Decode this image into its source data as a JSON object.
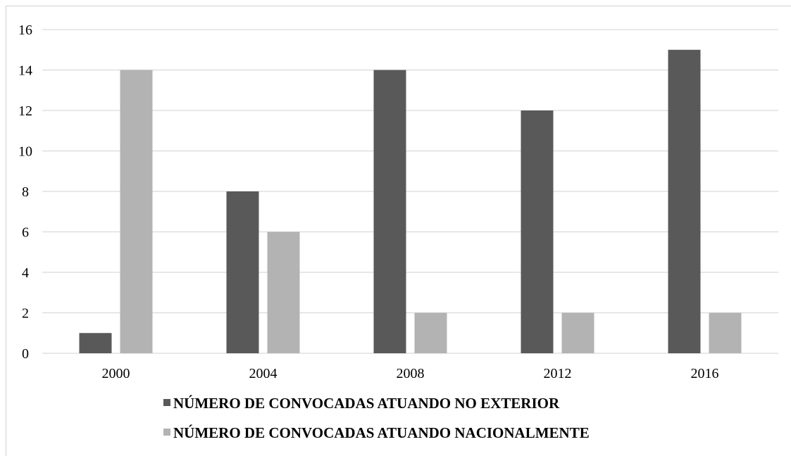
{
  "chart_data": {
    "type": "bar",
    "categories": [
      "2000",
      "2004",
      "2008",
      "2012",
      "2016"
    ],
    "series": [
      {
        "name": "NÚMERO DE CONVOCADAS ATUANDO NO EXTERIOR",
        "values": [
          1,
          8,
          14,
          12,
          15
        ],
        "color": "#595959"
      },
      {
        "name": "NÚMERO DE CONVOCADAS ATUANDO NACIONALMENTE",
        "values": [
          14,
          6,
          2,
          2,
          2
        ],
        "color": "#b3b3b3"
      }
    ],
    "ylim": [
      0,
      16
    ],
    "yticks": [
      "0",
      "2",
      "4",
      "6",
      "8",
      "10",
      "12",
      "14",
      "16"
    ],
    "grid": true,
    "legend_position": "bottom",
    "title": "",
    "xlabel": "",
    "ylabel": ""
  }
}
